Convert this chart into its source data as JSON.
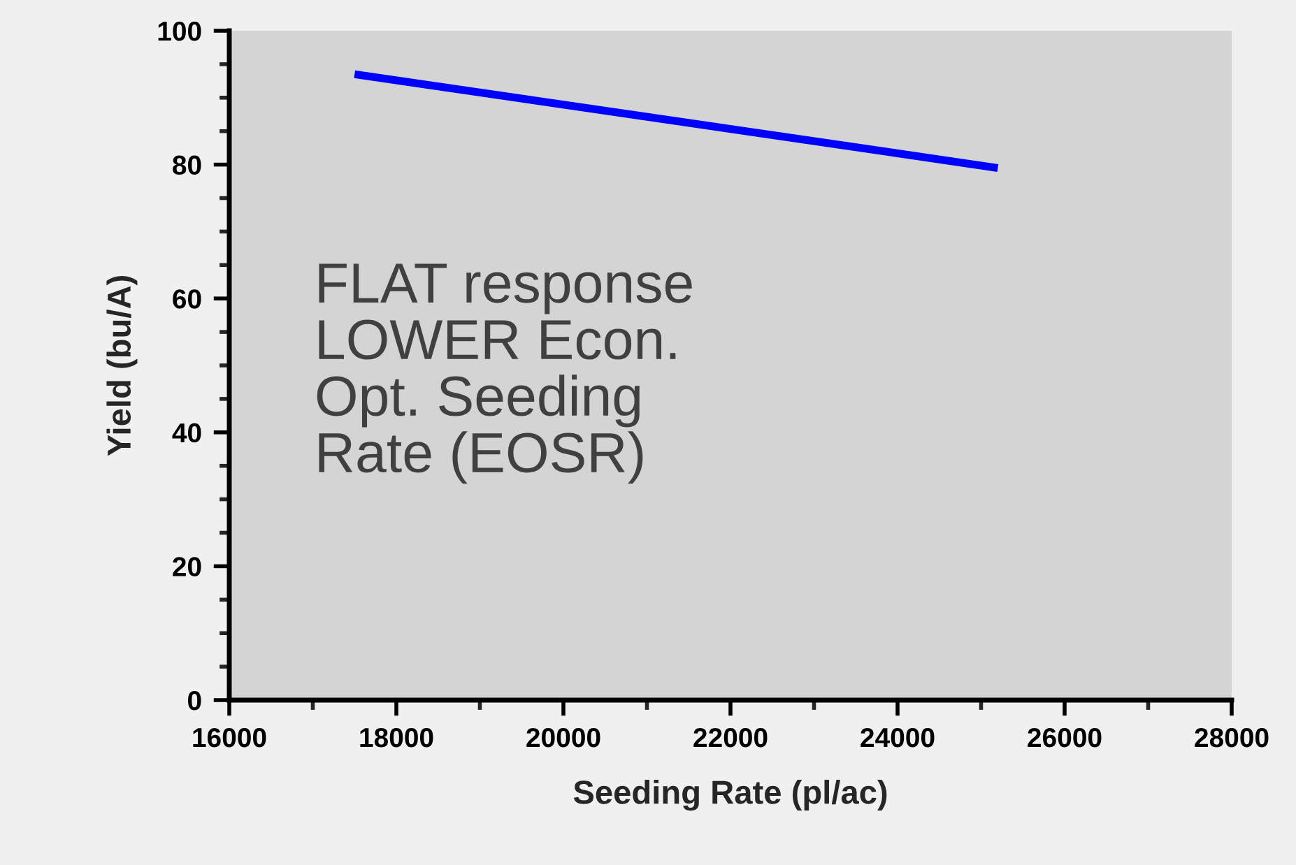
{
  "chart_data": {
    "type": "line",
    "xlabel": "Seeding Rate (pl/ac)",
    "ylabel": "Yield (bu/A)",
    "x": [
      17500,
      25200
    ],
    "series": [
      {
        "color": "#0000ff",
        "values": [
          93.5,
          79.5
        ]
      }
    ],
    "xlim": [
      16000,
      28000
    ],
    "xticks": [
      16000,
      18000,
      20000,
      22000,
      24000,
      26000,
      28000
    ],
    "ylim": [
      0,
      100
    ],
    "yticks": [
      0,
      20,
      40,
      60,
      80,
      100
    ],
    "annotations": [
      "FLAT response\nLOWER Econ.\nOpt. Seeding\nRate (EOSR)"
    ],
    "grid": false,
    "legend": false,
    "marker": "none",
    "line_style": "solid"
  }
}
